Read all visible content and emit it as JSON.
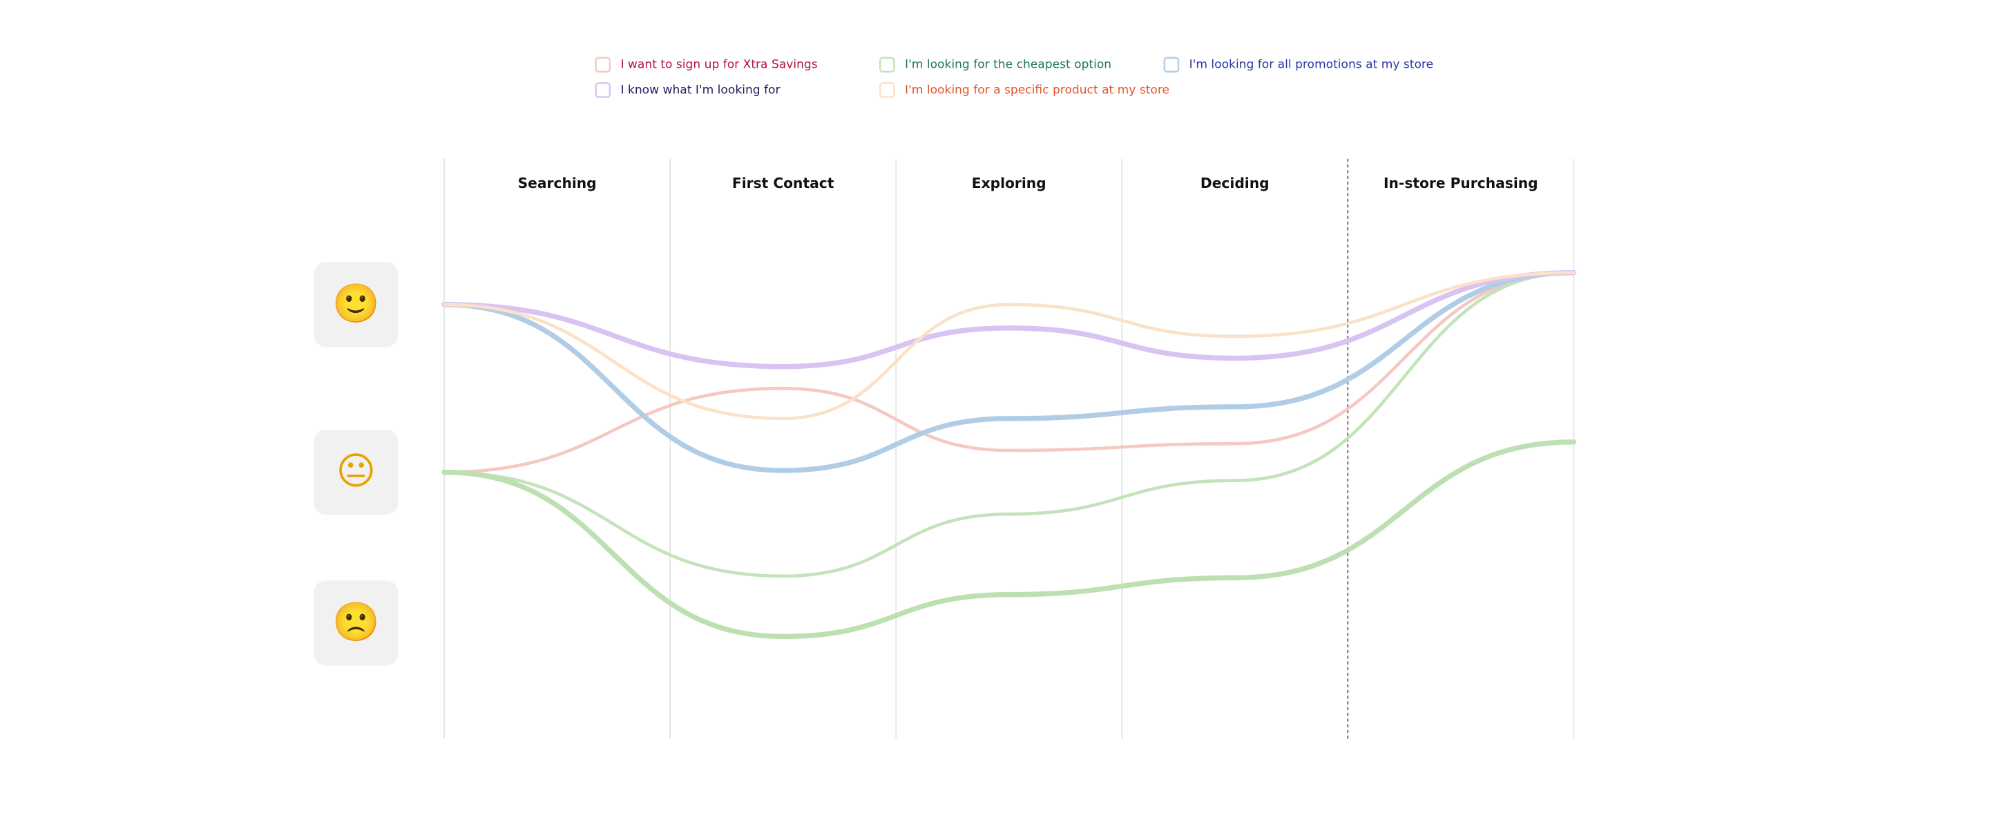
{
  "chart_data": {
    "type": "line",
    "categories": [
      "Searching",
      "First Contact",
      "Exploring",
      "Deciding",
      "In-store Purchasing"
    ],
    "x": [
      0,
      1.5,
      2.5,
      3.5,
      5
    ],
    "xlim": [
      0,
      5
    ],
    "xticks": [
      0,
      1,
      2,
      3,
      4,
      5
    ],
    "dashed_divider": 4,
    "ylim": [
      -1.59,
      1.87
    ],
    "yticks": [
      {
        "value": 1,
        "label": "🙂"
      },
      {
        "value": 0,
        "label": "😐"
      },
      {
        "value": -0.9,
        "label": "🙁"
      }
    ],
    "series": [
      {
        "name": "I want to sign up for Xtra Savings",
        "color": "#f5c8c2",
        "label_color": "#b3163c",
        "style": "thin",
        "values": [
          0,
          0.5,
          0.13,
          0.17,
          1.19
        ]
      },
      {
        "name": "I'm looking for the cheapest option",
        "color": "#c3e3ba",
        "label_color": "#1f7a50",
        "style": "thin",
        "values": [
          0,
          -0.62,
          -0.25,
          -0.05,
          1.19
        ]
      },
      {
        "name": "I'm looking for all promotions at my store",
        "color": "#b1cde6",
        "label_color": "#2a38a8",
        "style": "thick",
        "values": [
          1,
          0.01,
          0.32,
          0.39,
          1.19
        ]
      },
      {
        "name": "I know what I'm looking for",
        "color": "#d9c3f3",
        "label_color": "#23185e",
        "style": "thick",
        "values": [
          1,
          0.63,
          0.86,
          0.68,
          1.19
        ]
      },
      {
        "name": "I'm looking for a specific product at my store",
        "color": "#fbe1c8",
        "label_color": "#e5532b",
        "style": "thin",
        "values": [
          1,
          0.32,
          1,
          0.81,
          1.19
        ]
      },
      {
        "color": "#bde0b3",
        "style": "thick",
        "values": [
          0,
          -0.98,
          -0.73,
          -0.63,
          0.18
        ]
      }
    ]
  }
}
